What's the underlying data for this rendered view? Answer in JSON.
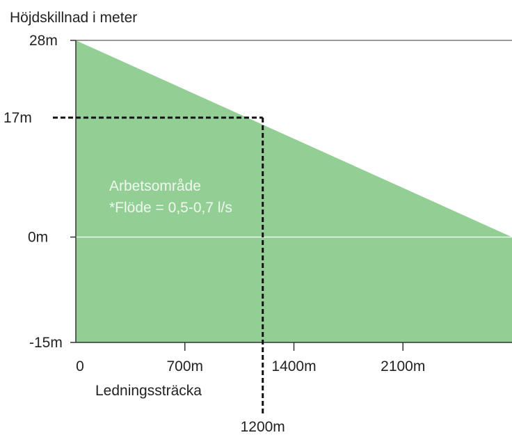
{
  "chart_data": {
    "type": "area",
    "ylabel": "Höjdskillnad i meter",
    "xlabel": "Ledningssträcka",
    "y_ticks": [
      {
        "value": 28,
        "label": "28m"
      },
      {
        "value": 17,
        "label": "17m"
      },
      {
        "value": 0,
        "label": "0m"
      },
      {
        "value": -15,
        "label": "-15m"
      }
    ],
    "x_ticks": [
      {
        "value": 0,
        "label": "0"
      },
      {
        "value": 700,
        "label": "700m"
      },
      {
        "value": 1400,
        "label": "1400m"
      },
      {
        "value": 2100,
        "label": "2100m"
      }
    ],
    "xlim": [
      0,
      2800
    ],
    "ylim": [
      -15,
      28
    ],
    "series": [
      {
        "boundary": [
          {
            "x": 0,
            "y": 28
          },
          {
            "x": 2800,
            "y": 0
          }
        ],
        "baseline": -15,
        "color": "#93cf95"
      }
    ],
    "annotation": {
      "lines": [
        "Arbetsområde",
        "*Flöde = 0,5-0,7 l/s"
      ],
      "x": 200,
      "y": 5
    },
    "marker": {
      "x": 1200,
      "y": 17,
      "x_label": "1200m",
      "style": "dashed"
    },
    "colors": {
      "area": "#93cf95",
      "axis": "#333333",
      "zero_line": "#e8f5e8",
      "marker": "#111111"
    }
  }
}
